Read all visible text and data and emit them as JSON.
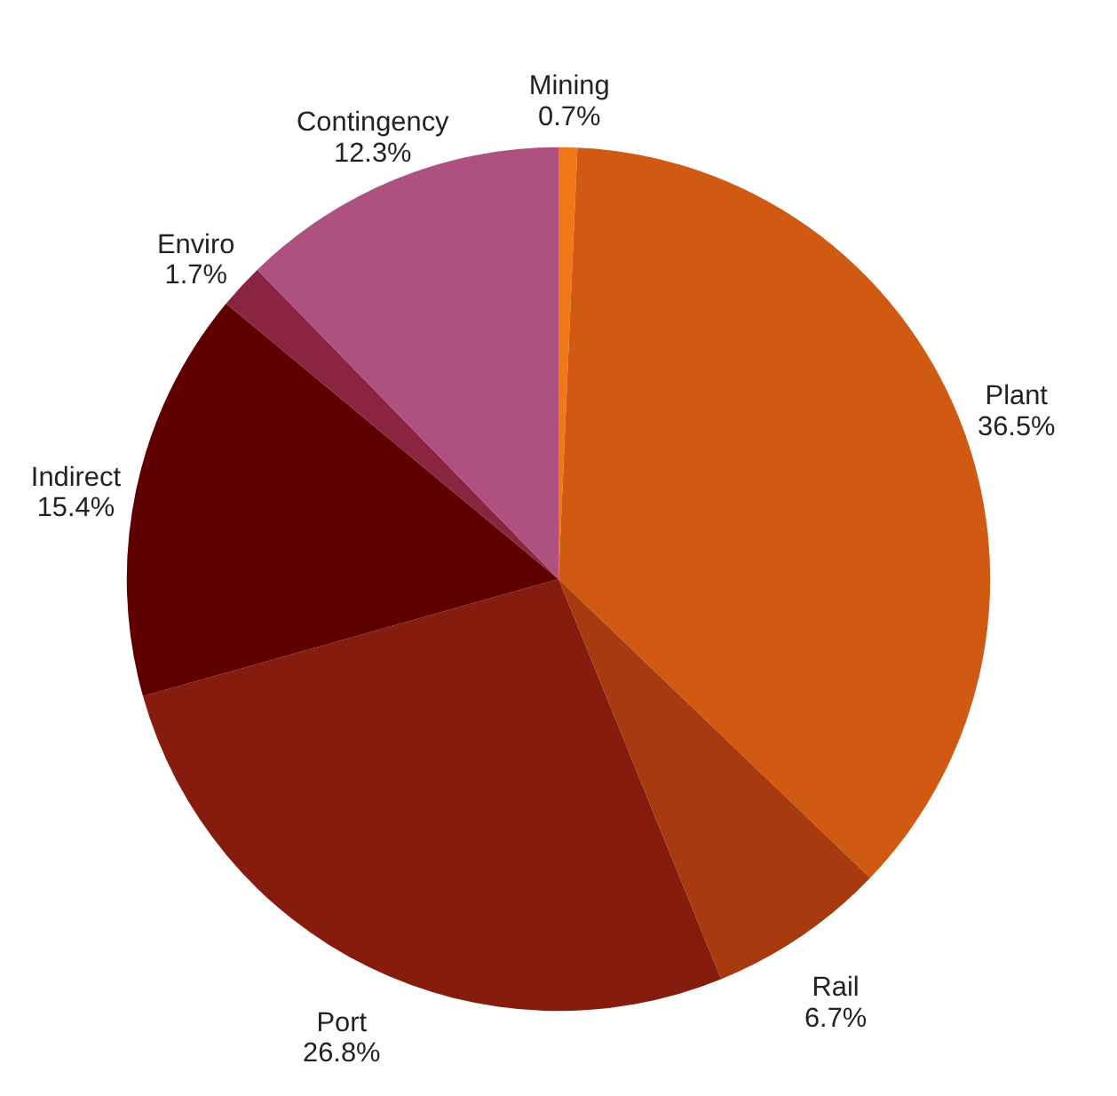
{
  "chart_data": {
    "type": "pie",
    "categories": [
      "Mining",
      "Plant",
      "Rail",
      "Port",
      "Indirect",
      "Enviro",
      "Contingency"
    ],
    "values": [
      0.7,
      36.5,
      6.7,
      26.8,
      15.4,
      1.7,
      12.3
    ],
    "value_labels": [
      "0.7%",
      "36.5%",
      "6.7%",
      "26.8%",
      "15.4%",
      "1.7%",
      "12.3%"
    ],
    "colors": [
      "#f07818",
      "#d05a12",
      "#a83a10",
      "#861c0e",
      "#5e0000",
      "#8a2440",
      "#ae5080"
    ]
  }
}
